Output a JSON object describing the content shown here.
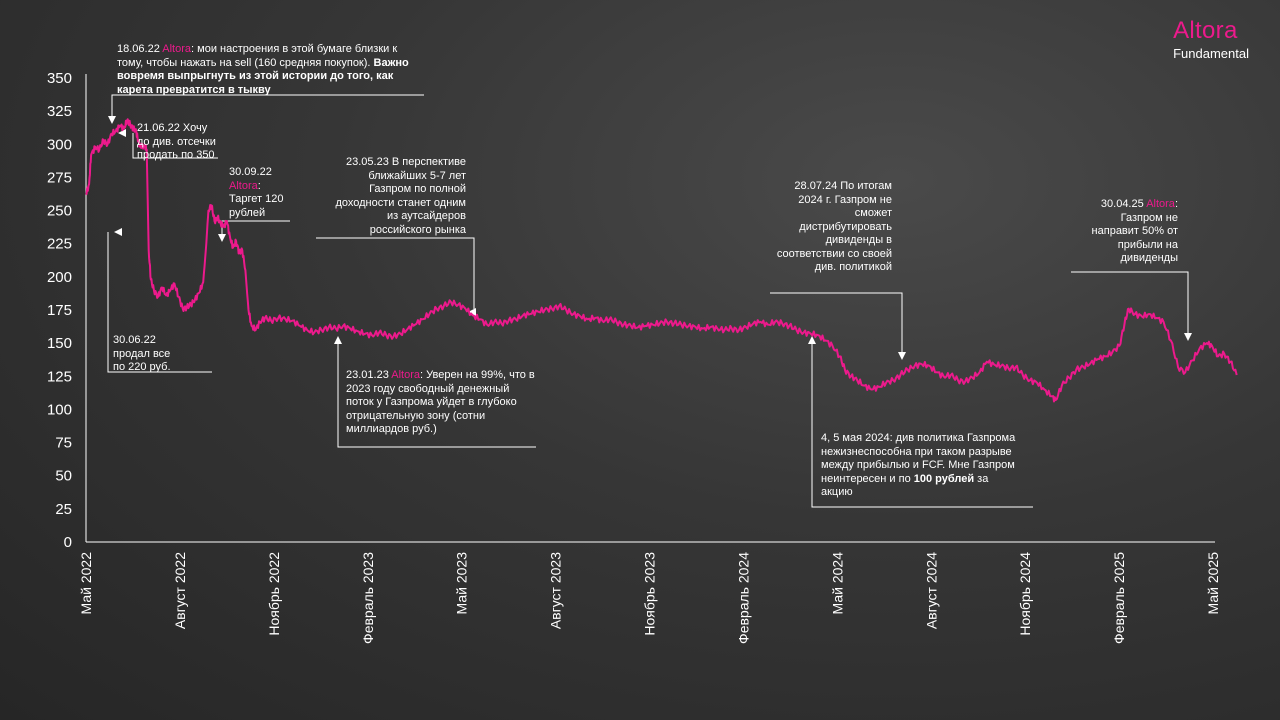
{
  "brand": {
    "name": "Altora",
    "subtitle": "Fundamental"
  },
  "colors": {
    "series": "#ec1a8c",
    "highlight": "#ec1a8c",
    "text": "#ffffff",
    "axis": "#ffffff"
  },
  "chart_data": {
    "type": "line",
    "title": "",
    "xlabel": "",
    "ylabel": "",
    "ylim": [
      0,
      350
    ],
    "y_ticks": [
      0,
      25,
      50,
      75,
      100,
      125,
      150,
      175,
      200,
      225,
      250,
      275,
      300,
      325,
      350
    ],
    "x_tick_labels": [
      "Май 2022",
      "Август 2022",
      "Ноябрь 2022",
      "Февраль 2023",
      "Май 2023",
      "Август 2023",
      "Ноябрь 2023",
      "Февраль 2024",
      "Май 2024",
      "Август 2024",
      "Ноябрь 2024",
      "Февраль 2025",
      "Май 2025"
    ],
    "grid": false,
    "legend": "none",
    "series": [
      {
        "values": [
          [
            "2022-05-01",
            262
          ],
          [
            "2022-05-04",
            270
          ],
          [
            "2022-05-06",
            292
          ],
          [
            "2022-05-10",
            298
          ],
          [
            "2022-05-14",
            296
          ],
          [
            "2022-05-18",
            303
          ],
          [
            "2022-05-22",
            300
          ],
          [
            "2022-05-26",
            308
          ],
          [
            "2022-05-30",
            310
          ],
          [
            "2022-06-03",
            314
          ],
          [
            "2022-06-07",
            312
          ],
          [
            "2022-06-10",
            318
          ],
          [
            "2022-06-13",
            315
          ],
          [
            "2022-06-16",
            312
          ],
          [
            "2022-06-19",
            309
          ],
          [
            "2022-06-21",
            302
          ],
          [
            "2022-06-23",
            298
          ],
          [
            "2022-06-27",
            299
          ],
          [
            "2022-06-29",
            296
          ],
          [
            "2022-07-01",
            220
          ],
          [
            "2022-07-03",
            198
          ],
          [
            "2022-07-06",
            190
          ],
          [
            "2022-07-10",
            185
          ],
          [
            "2022-07-14",
            192
          ],
          [
            "2022-07-18",
            186
          ],
          [
            "2022-07-22",
            190
          ],
          [
            "2022-07-26",
            195
          ],
          [
            "2022-07-30",
            185
          ],
          [
            "2022-08-03",
            176
          ],
          [
            "2022-08-07",
            177
          ],
          [
            "2022-08-11",
            179
          ],
          [
            "2022-08-15",
            183
          ],
          [
            "2022-08-19",
            188
          ],
          [
            "2022-08-23",
            196
          ],
          [
            "2022-08-26",
            225
          ],
          [
            "2022-08-28",
            250
          ],
          [
            "2022-08-31",
            254
          ],
          [
            "2022-09-03",
            242
          ],
          [
            "2022-09-06",
            245
          ],
          [
            "2022-09-09",
            240
          ],
          [
            "2022-09-12",
            238
          ],
          [
            "2022-09-15",
            242
          ],
          [
            "2022-09-18",
            230
          ],
          [
            "2022-09-21",
            222
          ],
          [
            "2022-09-24",
            227
          ],
          [
            "2022-09-27",
            218
          ],
          [
            "2022-09-30",
            220
          ],
          [
            "2022-10-03",
            205
          ],
          [
            "2022-10-06",
            175
          ],
          [
            "2022-10-09",
            163
          ],
          [
            "2022-10-13",
            160
          ],
          [
            "2022-10-17",
            166
          ],
          [
            "2022-10-22",
            169
          ],
          [
            "2022-10-28",
            167
          ],
          [
            "2022-11-04",
            169
          ],
          [
            "2022-11-11",
            168
          ],
          [
            "2022-11-18",
            167
          ],
          [
            "2022-11-25",
            163
          ],
          [
            "2022-12-02",
            160
          ],
          [
            "2022-12-09",
            158
          ],
          [
            "2022-12-16",
            160
          ],
          [
            "2022-12-23",
            162
          ],
          [
            "2022-12-30",
            161
          ],
          [
            "2023-01-06",
            163
          ],
          [
            "2023-01-13",
            161
          ],
          [
            "2023-01-20",
            159
          ],
          [
            "2023-01-27",
            157
          ],
          [
            "2023-02-03",
            156
          ],
          [
            "2023-02-10",
            158
          ],
          [
            "2023-02-17",
            156
          ],
          [
            "2023-02-24",
            155
          ],
          [
            "2023-03-03",
            157
          ],
          [
            "2023-03-10",
            161
          ],
          [
            "2023-03-17",
            164
          ],
          [
            "2023-03-24",
            168
          ],
          [
            "2023-03-31",
            172
          ],
          [
            "2023-04-07",
            176
          ],
          [
            "2023-04-14",
            178
          ],
          [
            "2023-04-21",
            181
          ],
          [
            "2023-04-28",
            179
          ],
          [
            "2023-05-05",
            176
          ],
          [
            "2023-05-12",
            171
          ],
          [
            "2023-05-19",
            168
          ],
          [
            "2023-05-26",
            164
          ],
          [
            "2023-06-02",
            166
          ],
          [
            "2023-06-09",
            165
          ],
          [
            "2023-06-16",
            167
          ],
          [
            "2023-06-23",
            168
          ],
          [
            "2023-06-30",
            171
          ],
          [
            "2023-07-07",
            172
          ],
          [
            "2023-07-14",
            174
          ],
          [
            "2023-07-21",
            175
          ],
          [
            "2023-07-28",
            176
          ],
          [
            "2023-08-04",
            178
          ],
          [
            "2023-08-11",
            175
          ],
          [
            "2023-08-18",
            172
          ],
          [
            "2023-08-25",
            170
          ],
          [
            "2023-09-01",
            168
          ],
          [
            "2023-09-08",
            169
          ],
          [
            "2023-09-15",
            167
          ],
          [
            "2023-09-22",
            168
          ],
          [
            "2023-09-29",
            166
          ],
          [
            "2023-10-06",
            164
          ],
          [
            "2023-10-13",
            163
          ],
          [
            "2023-10-20",
            162
          ],
          [
            "2023-10-27",
            163
          ],
          [
            "2023-11-03",
            164
          ],
          [
            "2023-11-10",
            165
          ],
          [
            "2023-11-17",
            166
          ],
          [
            "2023-11-24",
            165
          ],
          [
            "2023-12-01",
            164
          ],
          [
            "2023-12-08",
            163
          ],
          [
            "2023-12-15",
            162
          ],
          [
            "2023-12-22",
            161
          ],
          [
            "2023-12-29",
            162
          ],
          [
            "2024-01-05",
            161
          ],
          [
            "2024-01-12",
            160
          ],
          [
            "2024-01-19",
            161
          ],
          [
            "2024-01-26",
            160
          ],
          [
            "2024-02-02",
            162
          ],
          [
            "2024-02-09",
            165
          ],
          [
            "2024-02-16",
            166
          ],
          [
            "2024-02-23",
            164
          ],
          [
            "2024-03-01",
            166
          ],
          [
            "2024-03-08",
            165
          ],
          [
            "2024-03-15",
            163
          ],
          [
            "2024-03-22",
            160
          ],
          [
            "2024-03-29",
            158
          ],
          [
            "2024-04-05",
            157
          ],
          [
            "2024-04-12",
            156
          ],
          [
            "2024-04-19",
            152
          ],
          [
            "2024-04-26",
            148
          ],
          [
            "2024-05-03",
            140
          ],
          [
            "2024-05-08",
            130
          ],
          [
            "2024-05-14",
            125
          ],
          [
            "2024-05-20",
            122
          ],
          [
            "2024-05-27",
            118
          ],
          [
            "2024-06-03",
            115
          ],
          [
            "2024-06-10",
            117
          ],
          [
            "2024-06-17",
            120
          ],
          [
            "2024-06-24",
            122
          ],
          [
            "2024-07-01",
            126
          ],
          [
            "2024-07-08",
            130
          ],
          [
            "2024-07-15",
            133
          ],
          [
            "2024-07-22",
            134
          ],
          [
            "2024-07-29",
            133
          ],
          [
            "2024-08-05",
            128
          ],
          [
            "2024-08-12",
            125
          ],
          [
            "2024-08-19",
            126
          ],
          [
            "2024-08-26",
            122
          ],
          [
            "2024-09-02",
            121
          ],
          [
            "2024-09-09",
            124
          ],
          [
            "2024-09-16",
            128
          ],
          [
            "2024-09-23",
            136
          ],
          [
            "2024-09-30",
            134
          ],
          [
            "2024-10-07",
            133
          ],
          [
            "2024-10-14",
            131
          ],
          [
            "2024-10-21",
            132
          ],
          [
            "2024-10-28",
            126
          ],
          [
            "2024-11-04",
            122
          ],
          [
            "2024-11-11",
            120
          ],
          [
            "2024-11-18",
            115
          ],
          [
            "2024-11-25",
            110
          ],
          [
            "2024-11-29",
            107
          ],
          [
            "2024-12-05",
            118
          ],
          [
            "2024-12-12",
            124
          ],
          [
            "2024-12-19",
            130
          ],
          [
            "2024-12-26",
            132
          ],
          [
            "2025-01-02",
            135
          ],
          [
            "2025-01-09",
            138
          ],
          [
            "2025-01-16",
            140
          ],
          [
            "2025-01-23",
            143
          ],
          [
            "2025-01-30",
            148
          ],
          [
            "2025-02-04",
            165
          ],
          [
            "2025-02-08",
            176
          ],
          [
            "2025-02-14",
            172
          ],
          [
            "2025-02-21",
            170
          ],
          [
            "2025-02-28",
            172
          ],
          [
            "2025-03-07",
            169
          ],
          [
            "2025-03-14",
            166
          ],
          [
            "2025-03-21",
            152
          ],
          [
            "2025-03-28",
            132
          ],
          [
            "2025-04-04",
            128
          ],
          [
            "2025-04-11",
            137
          ],
          [
            "2025-04-18",
            146
          ],
          [
            "2025-04-25",
            150
          ],
          [
            "2025-04-30",
            148
          ],
          [
            "2025-05-06",
            140
          ],
          [
            "2025-05-12",
            142
          ],
          [
            "2025-05-18",
            136
          ],
          [
            "2025-05-24",
            126
          ]
        ]
      }
    ],
    "annotations": [
      {
        "date": "18.06.22",
        "author": "Altora",
        "text": ": мои настроения в этой бумаге близки к тому, чтобы нажать на sell (160 средняя покупок). ",
        "bold": "Важно вовремя выпрыгнуть из этой истории до того, как карета превратится в тыкву"
      },
      {
        "text": "21.06.22 Хочу до див. отсечки продать по 350"
      },
      {
        "text": "30.06.22 продал все по 220 руб."
      },
      {
        "date": "30.09.22",
        "author": "Altora",
        "text": ": Таргет 120 рублей"
      },
      {
        "date": "23.01.23",
        "author": "Altora",
        "text": ": Уверен на 99%, что в 2023 году свободный денежный поток у Газпрома уйдет в глубоко отрицательную зону (сотни миллиардов руб.)"
      },
      {
        "text": "23.05.23  В перспективе ближайших 5-7 лет Газпром по полной доходности станет одним из аутсайдеров российского рынка"
      },
      {
        "text": "28.07.24  По итогам 2024 г. Газпром не сможет дистрибутировать дивиденды в соответствии со своей див. политикой"
      },
      {
        "text": "4, 5 мая 2024: див политика Газпрома нежизнеспособна при таком разрыве между прибылью и FCF. Мне Газпром неинтересен и по ",
        "bold": "100 рублей",
        "tail": " за акцию"
      },
      {
        "date": "30.04.25",
        "author": "Altora",
        "text": ": Газпром не направит 50% от прибыли на дивиденды"
      }
    ]
  }
}
